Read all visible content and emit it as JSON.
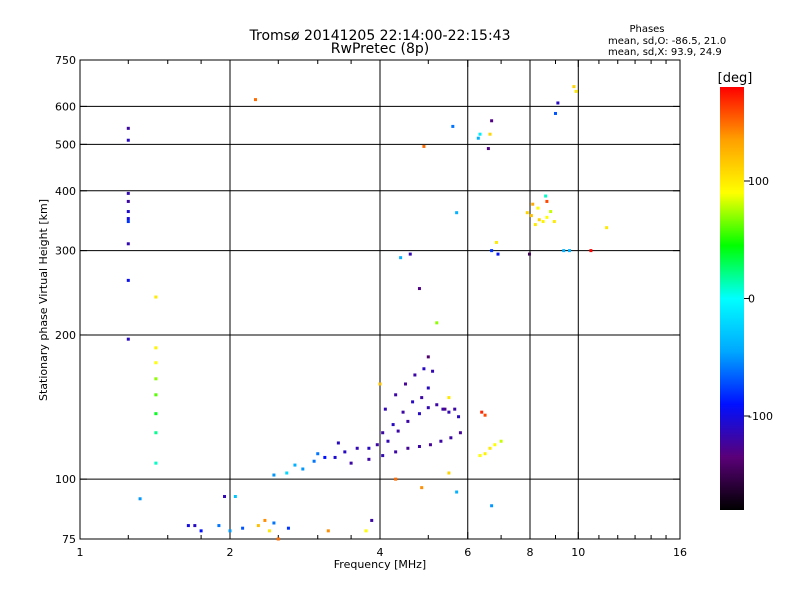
{
  "chart_data": {
    "type": "scatter",
    "title": "Tromsø 20141205 22:14:00-22:15:43",
    "subtitle": "RwPretec (8p)",
    "phase_header": "Phases",
    "phase_stats": [
      "mean, sd,O: -86.5, 21.0",
      "mean, sd,X:  93.9, 24.9"
    ],
    "xlabel": "Frequency [MHz]",
    "ylabel": "Stationary phase Virtual Height [km]",
    "x_scale": "log2",
    "y_scale": "log",
    "xlim": [
      1,
      16
    ],
    "ylim": [
      75,
      750
    ],
    "x_ticks": [
      1,
      2,
      4,
      6,
      8,
      10,
      16
    ],
    "x_tick_labels": [
      "1",
      "2",
      "4",
      "6",
      "8",
      "10",
      "16"
    ],
    "x_minor_ticks": [
      1.25,
      1.5,
      1.75,
      2.5,
      3,
      3.5,
      5,
      7,
      9,
      11,
      12,
      13,
      14,
      15
    ],
    "y_ticks": [
      75,
      100,
      200,
      300,
      400,
      500,
      600,
      750
    ],
    "y_tick_labels": [
      "75",
      "100",
      "200",
      "300",
      "400",
      "500",
      "600",
      "750"
    ],
    "grid_x": [
      2,
      4,
      6,
      8,
      10
    ],
    "grid_y": [
      100,
      200,
      300,
      400,
      500,
      600
    ],
    "grid": true,
    "colorbar": {
      "label": "[deg]",
      "range": [
        -180,
        180
      ],
      "ticks": [
        100,
        0,
        -100
      ],
      "tick_labels": [
        "100",
        "0",
        "-100"
      ],
      "colors": [
        "#000000",
        "#5a0078",
        "#0010ff",
        "#00a8ff",
        "#00ffff",
        "#00ff00",
        "#ffff00",
        "#ffa000",
        "#ff0000"
      ]
    },
    "series": [
      {
        "points": [
          [
            1.25,
            540,
            -120
          ],
          [
            1.25,
            510,
            -110
          ],
          [
            1.25,
            395,
            -115
          ],
          [
            1.25,
            380,
            -120
          ],
          [
            1.25,
            362,
            -105
          ],
          [
            1.25,
            350,
            -100
          ],
          [
            1.25,
            345,
            -80
          ],
          [
            1.25,
            310,
            -115
          ],
          [
            1.25,
            260,
            -95
          ],
          [
            1.25,
            196,
            -110
          ],
          [
            1.42,
            240,
            100
          ],
          [
            1.42,
            188,
            95
          ],
          [
            1.42,
            175,
            90
          ],
          [
            1.42,
            162,
            70
          ],
          [
            1.42,
            150,
            60
          ],
          [
            1.42,
            137,
            40
          ],
          [
            1.42,
            125,
            20
          ],
          [
            1.42,
            108,
            10
          ],
          [
            1.32,
            91,
            -50
          ],
          [
            1.65,
            80,
            -100
          ],
          [
            1.7,
            80,
            -110
          ],
          [
            1.75,
            78,
            -90
          ],
          [
            1.9,
            80,
            -60
          ],
          [
            1.95,
            92,
            -115
          ],
          [
            2.0,
            78,
            -50
          ],
          [
            2.05,
            92,
            -30
          ],
          [
            2.12,
            79,
            -70
          ],
          [
            2.25,
            620,
            150
          ],
          [
            2.28,
            80,
            120
          ],
          [
            2.35,
            82,
            140
          ],
          [
            2.4,
            78,
            100
          ],
          [
            2.45,
            81,
            -60
          ],
          [
            2.5,
            75,
            150
          ],
          [
            2.62,
            79,
            -80
          ],
          [
            3.15,
            78,
            140
          ],
          [
            3.75,
            78,
            90
          ],
          [
            3.85,
            82,
            -120
          ],
          [
            4.0,
            158,
            120
          ],
          [
            4.3,
            100,
            150
          ],
          [
            4.4,
            290,
            -40
          ],
          [
            4.6,
            295,
            -115
          ],
          [
            4.8,
            250,
            -130
          ],
          [
            4.85,
            96,
            140
          ],
          [
            4.9,
            495,
            150
          ],
          [
            5.0,
            180,
            -140
          ],
          [
            5.2,
            212,
            70
          ],
          [
            5.4,
            140,
            -130
          ],
          [
            5.5,
            148,
            100
          ],
          [
            5.5,
            103,
            110
          ],
          [
            5.6,
            545,
            -60
          ],
          [
            5.7,
            360,
            -40
          ],
          [
            5.7,
            94,
            -40
          ],
          [
            6.3,
            515,
            -40
          ],
          [
            6.35,
            525,
            -10
          ],
          [
            6.4,
            138,
            170
          ],
          [
            6.5,
            136,
            160
          ],
          [
            6.6,
            490,
            -130
          ],
          [
            6.65,
            525,
            110
          ],
          [
            6.7,
            560,
            -130
          ],
          [
            6.7,
            300,
            -80
          ],
          [
            6.85,
            312,
            100
          ],
          [
            6.9,
            295,
            -90
          ],
          [
            6.7,
            88,
            -50
          ],
          [
            8.6,
            390,
            10
          ],
          [
            8.65,
            380,
            160
          ],
          [
            9.0,
            580,
            -70
          ],
          [
            9.1,
            610,
            -110
          ],
          [
            9.35,
            300,
            -40
          ],
          [
            9.6,
            300,
            -40
          ],
          [
            9.8,
            660,
            110
          ],
          [
            9.9,
            645,
            100
          ],
          [
            10.6,
            300,
            180
          ],
          [
            11.4,
            335,
            100
          ],
          [
            7.98,
            295,
            -150
          ]
        ]
      },
      {
        "points": [
          [
            2.45,
            102,
            -50
          ],
          [
            2.6,
            103,
            -20
          ],
          [
            2.8,
            105,
            -50
          ],
          [
            2.95,
            109,
            -60
          ],
          [
            3.1,
            111,
            -90
          ],
          [
            3.25,
            111,
            -105
          ],
          [
            3.4,
            114,
            -110
          ],
          [
            3.6,
            116,
            -115
          ],
          [
            3.8,
            116,
            -110
          ],
          [
            3.95,
            118,
            -120
          ],
          [
            4.15,
            120,
            -115
          ],
          [
            4.35,
            126,
            -120
          ],
          [
            4.55,
            132,
            -120
          ],
          [
            4.8,
            137,
            -110
          ],
          [
            5.0,
            141,
            -115
          ],
          [
            5.2,
            143,
            -120
          ],
          [
            5.35,
            140,
            -120
          ],
          [
            5.5,
            138,
            -115
          ],
          [
            5.65,
            140,
            -120
          ],
          [
            5.75,
            135,
            -110
          ],
          [
            3.5,
            108,
            -120
          ],
          [
            3.8,
            110,
            -120
          ],
          [
            4.05,
            112,
            -115
          ],
          [
            4.3,
            114,
            -120
          ],
          [
            4.55,
            116,
            -125
          ],
          [
            4.8,
            117,
            -120
          ],
          [
            5.05,
            118,
            -125
          ],
          [
            5.3,
            120,
            -120
          ],
          [
            5.55,
            122,
            -120
          ],
          [
            5.8,
            125,
            -125
          ],
          [
            4.1,
            140,
            -115
          ],
          [
            4.3,
            150,
            -120
          ],
          [
            4.5,
            158,
            -125
          ],
          [
            4.7,
            165,
            -120
          ],
          [
            4.9,
            170,
            -110
          ],
          [
            5.1,
            168,
            -115
          ],
          [
            5.0,
            155,
            -110
          ],
          [
            4.85,
            148,
            -120
          ],
          [
            4.65,
            145,
            -110
          ],
          [
            4.45,
            138,
            -120
          ],
          [
            4.25,
            130,
            -110
          ],
          [
            4.05,
            125,
            -120
          ],
          [
            3.3,
            119,
            -110
          ],
          [
            3.0,
            113,
            -60
          ],
          [
            2.7,
            107,
            -40
          ]
        ]
      },
      {
        "points": [
          [
            7.9,
            360,
            110
          ],
          [
            8.05,
            355,
            120
          ],
          [
            8.2,
            340,
            100
          ],
          [
            8.35,
            348,
            110
          ],
          [
            8.5,
            345,
            95
          ],
          [
            8.65,
            352,
            90
          ],
          [
            8.8,
            362,
            80
          ],
          [
            8.95,
            345,
            100
          ],
          [
            8.1,
            375,
            130
          ],
          [
            8.3,
            368,
            90
          ],
          [
            6.35,
            112,
            90
          ],
          [
            6.5,
            113,
            95
          ],
          [
            6.65,
            116,
            100
          ],
          [
            6.8,
            118,
            90
          ],
          [
            7.0,
            120,
            80
          ]
        ]
      }
    ]
  }
}
